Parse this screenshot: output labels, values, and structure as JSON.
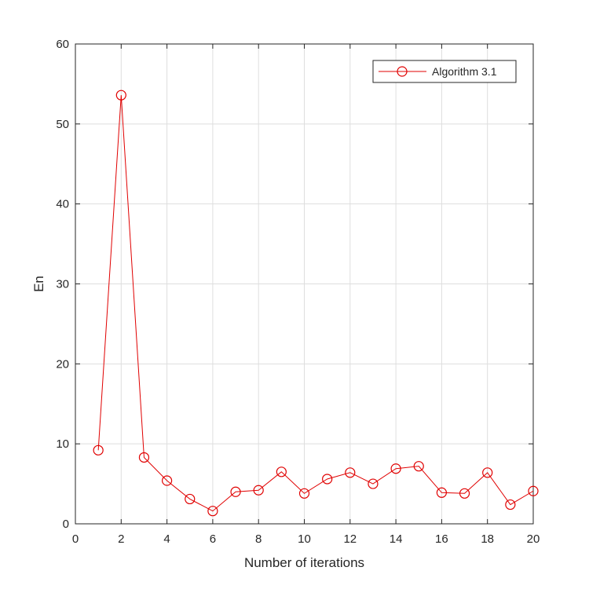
{
  "chart_data": {
    "type": "line",
    "xlabel": "Number of iterations",
    "ylabel": "En",
    "xlim": [
      0,
      20
    ],
    "ylim": [
      0,
      60
    ],
    "xticks": [
      "0",
      "2",
      "4",
      "6",
      "8",
      "10",
      "12",
      "14",
      "16",
      "18",
      "20"
    ],
    "yticks": [
      "0",
      "10",
      "20",
      "30",
      "40",
      "50",
      "60"
    ],
    "grid": true,
    "legend_position": "top-right",
    "marker": "circle",
    "series": [
      {
        "name": "Algorithm 3.1",
        "color": "#e00000",
        "x": [
          1,
          2,
          3,
          4,
          5,
          6,
          7,
          8,
          9,
          10,
          11,
          12,
          13,
          14,
          15,
          16,
          17,
          18,
          19,
          20
        ],
        "y": [
          9.2,
          53.6,
          8.3,
          5.4,
          3.1,
          1.6,
          4.0,
          4.2,
          6.5,
          3.8,
          5.6,
          6.4,
          5.0,
          6.9,
          7.2,
          3.9,
          3.8,
          6.4,
          2.4,
          4.1
        ]
      }
    ]
  }
}
